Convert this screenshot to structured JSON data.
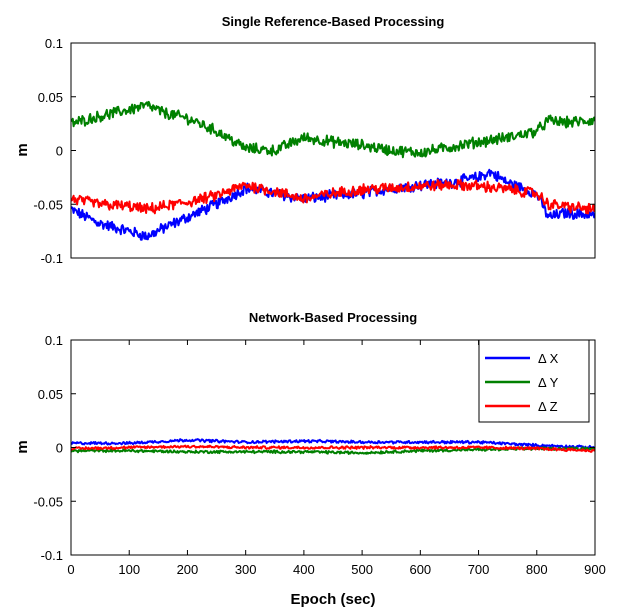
{
  "chart_data": [
    {
      "type": "line",
      "title": "Single Reference-Based Processing",
      "xlabel": "",
      "ylabel": "m",
      "xlim": [
        0,
        900
      ],
      "ylim": [
        -0.1,
        0.1
      ],
      "xticks": [],
      "yticks": [
        -0.1,
        -0.05,
        0,
        0.05,
        0.1
      ],
      "ytick_labels": [
        "-0.1",
        "-0.05",
        "0",
        "0.05",
        "0.1"
      ],
      "grid": false,
      "series": [
        {
          "color": "#0000ff",
          "x": [
            0,
            50,
            100,
            130,
            160,
            200,
            250,
            300,
            350,
            400,
            450,
            500,
            550,
            600,
            650,
            700,
            720,
            750,
            800,
            820,
            850,
            900
          ],
          "y": [
            -0.055,
            -0.068,
            -0.075,
            -0.08,
            -0.072,
            -0.062,
            -0.05,
            -0.035,
            -0.04,
            -0.045,
            -0.042,
            -0.04,
            -0.035,
            -0.032,
            -0.03,
            -0.025,
            -0.02,
            -0.03,
            -0.04,
            -0.062,
            -0.058,
            -0.06
          ]
        },
        {
          "color": "#008000",
          "x": [
            0,
            50,
            100,
            130,
            160,
            200,
            250,
            300,
            350,
            400,
            450,
            500,
            550,
            600,
            650,
            700,
            750,
            800,
            820,
            850,
            900
          ],
          "y": [
            0.025,
            0.032,
            0.038,
            0.042,
            0.035,
            0.03,
            0.018,
            0.002,
            0.0,
            0.012,
            0.008,
            0.005,
            0.0,
            -0.002,
            0.003,
            0.008,
            0.012,
            0.018,
            0.028,
            0.026,
            0.028
          ]
        },
        {
          "color": "#ff0000",
          "x": [
            0,
            50,
            100,
            130,
            160,
            200,
            250,
            300,
            350,
            400,
            450,
            500,
            550,
            600,
            650,
            700,
            750,
            800,
            820,
            850,
            900
          ],
          "y": [
            -0.045,
            -0.05,
            -0.052,
            -0.055,
            -0.052,
            -0.048,
            -0.042,
            -0.032,
            -0.038,
            -0.045,
            -0.04,
            -0.036,
            -0.035,
            -0.033,
            -0.032,
            -0.033,
            -0.036,
            -0.04,
            -0.05,
            -0.052,
            -0.055
          ]
        }
      ]
    },
    {
      "type": "line",
      "title": "Network-Based Processing",
      "xlabel": "Epoch (sec)",
      "ylabel": "m",
      "xlim": [
        0,
        900
      ],
      "ylim": [
        -0.1,
        0.1
      ],
      "xticks": [
        0,
        100,
        200,
        300,
        400,
        500,
        600,
        700,
        800,
        900
      ],
      "xtick_labels": [
        "0",
        "100",
        "200",
        "300",
        "400",
        "500",
        "600",
        "700",
        "800",
        "900"
      ],
      "yticks": [
        -0.1,
        -0.05,
        0,
        0.05,
        0.1
      ],
      "ytick_labels": [
        "-0.1",
        "-0.05",
        "0",
        "0.05",
        "0.1"
      ],
      "grid": false,
      "legend_position": "top-right",
      "series": [
        {
          "name": "Δ X",
          "color": "#0000ff",
          "x": [
            0,
            100,
            200,
            300,
            400,
            500,
            600,
            700,
            800,
            900
          ],
          "y": [
            0.004,
            0.004,
            0.007,
            0.005,
            0.006,
            0.005,
            0.005,
            0.005,
            0.002,
            0.0
          ]
        },
        {
          "name": "Δ Y",
          "color": "#008000",
          "x": [
            0,
            100,
            200,
            300,
            400,
            500,
            600,
            700,
            800,
            900
          ],
          "y": [
            -0.003,
            -0.003,
            -0.004,
            -0.004,
            -0.004,
            -0.005,
            -0.003,
            -0.002,
            -0.001,
            -0.001
          ]
        },
        {
          "name": "Δ Z",
          "color": "#ff0000",
          "x": [
            0,
            100,
            200,
            300,
            400,
            500,
            600,
            700,
            800,
            900
          ],
          "y": [
            -0.001,
            0.0,
            0.001,
            0.0,
            0.0,
            0.0,
            0.0,
            0.0,
            -0.001,
            -0.003
          ]
        }
      ]
    }
  ]
}
